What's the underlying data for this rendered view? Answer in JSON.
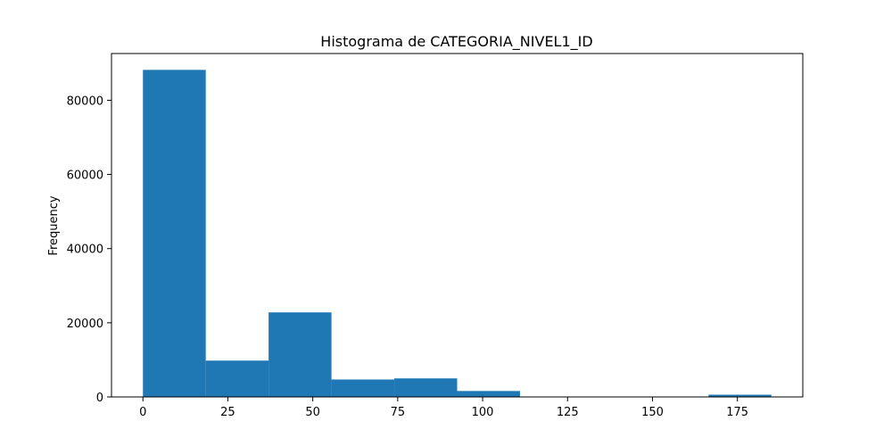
{
  "chart_data": {
    "type": "bar",
    "subtype": "histogram",
    "title": "Histograma de CATEGORIA_NIVEL1_ID",
    "xlabel": "",
    "ylabel": "Frequency",
    "bin_edges": [
      0,
      18.5,
      37,
      55.5,
      74,
      92.5,
      111,
      129.5,
      148,
      166.5,
      185
    ],
    "values": [
      88200,
      9800,
      22800,
      4700,
      5000,
      1600,
      0,
      0,
      0,
      600
    ],
    "xlim": [
      -9.25,
      194.25
    ],
    "ylim": [
      0,
      92610
    ],
    "x_ticks": [
      0,
      25,
      50,
      75,
      100,
      125,
      150,
      175
    ],
    "y_ticks": [
      0,
      20000,
      40000,
      60000,
      80000
    ],
    "x_tick_labels": [
      "0",
      "25",
      "50",
      "75",
      "100",
      "125",
      "150",
      "175"
    ],
    "y_tick_labels": [
      "0",
      "20000",
      "40000",
      "60000",
      "80000"
    ],
    "bar_color": "#1f77b4",
    "grid": false,
    "legend": false
  }
}
